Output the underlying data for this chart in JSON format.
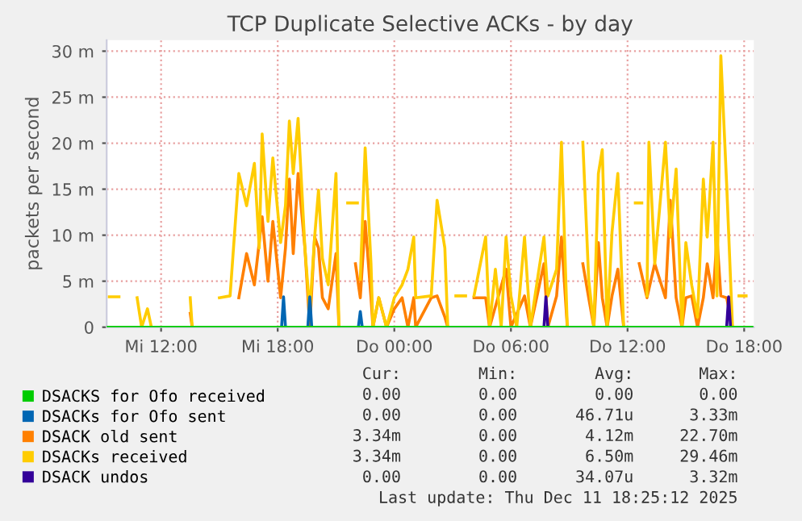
{
  "chart_data": {
    "type": "line",
    "title": "TCP Duplicate Selective ACKs - by day",
    "ylabel": "packets per second",
    "xlim": [
      "2025-12-10T09:12",
      "2025-12-11T18:30"
    ],
    "xticks": [
      {
        "value": "2025-12-10T12:00",
        "label": "Mi 12:00"
      },
      {
        "value": "2025-12-10T18:00",
        "label": "Mi 18:00"
      },
      {
        "value": "2025-12-11T00:00",
        "label": "Do 00:00"
      },
      {
        "value": "2025-12-11T06:00",
        "label": "Do 06:00"
      },
      {
        "value": "2025-12-11T12:00",
        "label": "Do 12:00"
      },
      {
        "value": "2025-12-11T18:00",
        "label": "Do 18:00"
      }
    ],
    "ylim": [
      0,
      31.2
    ],
    "yticks": [
      0,
      {
        "value": 5,
        "label": "5 m"
      },
      {
        "value": 10,
        "label": "10 m"
      },
      {
        "value": 15,
        "label": "15 m"
      },
      {
        "value": 20,
        "label": "20 m"
      },
      {
        "value": 25,
        "label": "25 m"
      },
      {
        "value": 30,
        "label": "30 m"
      }
    ],
    "grid": true,
    "legend": "bottom",
    "marker": "none",
    "line_style": "solid",
    "series": [
      {
        "name": "DSACKS for Ofo received",
        "color": "#00cc00",
        "x": [
          "2025-12-10T09:12",
          "2025-12-11T18:24"
        ],
        "values": [
          0,
          0
        ]
      },
      {
        "name": "DSACKs for Ofo sent",
        "color": "#0066b3",
        "x": [
          "2025-12-10T18:12",
          "2025-12-10T18:18",
          "2025-12-10T18:24",
          "2025-12-10T19:00",
          "2025-12-10T19:33",
          "2025-12-10T19:39",
          "2025-12-10T19:45",
          "2025-12-10T21:00",
          "2025-12-10T22:09",
          "2025-12-10T22:15",
          "2025-12-10T22:21"
        ],
        "values": [
          0,
          3.3,
          0,
          null,
          0,
          3.3,
          0,
          null,
          0,
          1.7,
          0
        ]
      },
      {
        "name": "DSACK old sent",
        "color": "#ff8000",
        "x": [
          "2025-12-10T13:30",
          "2025-12-10T13:36",
          "2025-12-10T13:42",
          "2025-12-10T16:00",
          "2025-12-10T16:24",
          "2025-12-10T16:48",
          "2025-12-10T17:12",
          "2025-12-10T17:30",
          "2025-12-10T17:45",
          "2025-12-10T18:09",
          "2025-12-10T18:24",
          "2025-12-10T18:36",
          "2025-12-10T18:48",
          "2025-12-10T19:03",
          "2025-12-10T19:24",
          "2025-12-10T19:39",
          "2025-12-10T19:54",
          "2025-12-10T20:06",
          "2025-12-10T20:18",
          "2025-12-10T20:36",
          "2025-12-10T21:00",
          "2025-12-10T21:09",
          "2025-12-10T21:30",
          "2025-12-10T22:00",
          "2025-12-10T22:15",
          "2025-12-10T22:30",
          "2025-12-10T22:48",
          "2025-12-10T22:54",
          "2025-12-10T23:12",
          "2025-12-10T23:36",
          "2025-12-11T00:00",
          "2025-12-11T00:24",
          "2025-12-11T00:42",
          "2025-12-11T01:00",
          "2025-12-11T01:06",
          "2025-12-11T01:54",
          "2025-12-11T02:12",
          "2025-12-11T02:36",
          "2025-12-11T02:45",
          "2025-12-11T03:30",
          "2025-12-11T04:06",
          "2025-12-11T04:42",
          "2025-12-11T04:54",
          "2025-12-11T05:45",
          "2025-12-11T06:00",
          "2025-12-11T06:42",
          "2025-12-11T07:00",
          "2025-12-11T07:42",
          "2025-12-11T07:54",
          "2025-12-11T08:21",
          "2025-12-11T08:36",
          "2025-12-11T08:54",
          "2025-12-11T09:18",
          "2025-12-11T09:42",
          "2025-12-11T10:00",
          "2025-12-11T10:16",
          "2025-12-11T10:30",
          "2025-12-11T10:42",
          "2025-12-11T10:57",
          "2025-12-11T11:12",
          "2025-12-11T11:30",
          "2025-12-11T11:48",
          "2025-12-11T12:12",
          "2025-12-11T12:36",
          "2025-12-11T13:00",
          "2025-12-11T13:24",
          "2025-12-11T13:57",
          "2025-12-11T14:12",
          "2025-12-11T14:30",
          "2025-12-11T14:48",
          "2025-12-11T15:00",
          "2025-12-11T15:18",
          "2025-12-11T15:36",
          "2025-12-11T15:54",
          "2025-12-11T16:06",
          "2025-12-11T16:24",
          "2025-12-11T16:36",
          "2025-12-11T16:48",
          "2025-12-11T17:06",
          "2025-12-11T17:24"
        ],
        "values": [
          1.5,
          0,
          null,
          3.2,
          8.0,
          4.6,
          12.0,
          5.0,
          11.5,
          3.2,
          8.6,
          16.1,
          8.0,
          16.7,
          8.6,
          0,
          9.8,
          8.6,
          3.2,
          2.0,
          8.0,
          0,
          null,
          6.9,
          3.2,
          11.5,
          3.2,
          0,
          3.2,
          0,
          2.0,
          3.2,
          0,
          3.2,
          0,
          3.2,
          3.4,
          1.1,
          0,
          null,
          3.2,
          3.2,
          0,
          6.3,
          0,
          3.4,
          0,
          6.9,
          0,
          3.4,
          9.8,
          0,
          null,
          6.9,
          3.2,
          0,
          9.2,
          3.2,
          0,
          3.4,
          6.3,
          0,
          null,
          6.9,
          3.2,
          6.9,
          3.2,
          13.8,
          3.2,
          0,
          3.2,
          3.4,
          0,
          3.2,
          6.9,
          3.2,
          9.8,
          3.4,
          3.2,
          0
        ]
      },
      {
        "name": "DSACKs received",
        "color": "#ffcc00",
        "x": [
          "2025-12-10T09:20",
          "2025-12-10T09:50",
          "2025-12-10T09:54",
          "2025-12-10T10:46",
          "2025-12-10T11:00",
          "2025-12-10T11:18",
          "2025-12-10T11:30",
          "2025-12-10T11:36",
          "2025-12-10T13:30",
          "2025-12-10T13:36",
          "2025-12-10T13:42",
          "2025-12-10T15:00",
          "2025-12-10T15:33",
          "2025-12-10T16:00",
          "2025-12-10T16:24",
          "2025-12-10T16:48",
          "2025-12-10T17:03",
          "2025-12-10T17:12",
          "2025-12-10T17:30",
          "2025-12-10T17:45",
          "2025-12-10T18:09",
          "2025-12-10T18:24",
          "2025-12-10T18:36",
          "2025-12-10T18:48",
          "2025-12-10T19:03",
          "2025-12-10T19:24",
          "2025-12-10T19:39",
          "2025-12-10T19:54",
          "2025-12-10T20:06",
          "2025-12-10T20:18",
          "2025-12-10T20:36",
          "2025-12-10T21:00",
          "2025-12-10T21:09",
          "2025-12-10T21:30",
          "2025-12-10T21:36",
          "2025-12-10T22:06",
          "2025-12-10T22:08",
          "2025-12-10T22:15",
          "2025-12-10T22:30",
          "2025-12-10T22:48",
          "2025-12-10T22:54",
          "2025-12-10T23:12",
          "2025-12-10T23:36",
          "2025-12-11T00:00",
          "2025-12-11T00:24",
          "2025-12-11T00:42",
          "2025-12-11T01:00",
          "2025-12-11T01:06",
          "2025-12-11T01:54",
          "2025-12-11T02:12",
          "2025-12-11T02:36",
          "2025-12-11T02:45",
          "2025-12-11T02:50",
          "2025-12-11T03:10",
          "2025-12-11T03:40",
          "2025-12-11T03:42",
          "2025-12-11T04:06",
          "2025-12-11T04:42",
          "2025-12-11T04:54",
          "2025-12-11T05:12",
          "2025-12-11T05:30",
          "2025-12-11T05:45",
          "2025-12-11T06:00",
          "2025-12-11T06:18",
          "2025-12-11T06:42",
          "2025-12-11T07:00",
          "2025-12-11T07:24",
          "2025-12-11T07:42",
          "2025-12-11T07:54",
          "2025-12-11T08:21",
          "2025-12-11T08:36",
          "2025-12-11T08:54",
          "2025-12-11T09:18",
          "2025-12-11T09:42",
          "2025-12-11T10:00",
          "2025-12-11T10:16",
          "2025-12-11T10:30",
          "2025-12-11T10:42",
          "2025-12-11T10:57",
          "2025-12-11T11:12",
          "2025-12-11T11:30",
          "2025-12-11T11:48",
          "2025-12-11T12:12",
          "2025-12-11T12:24",
          "2025-12-11T12:44",
          "2025-12-11T12:48",
          "2025-12-11T13:00",
          "2025-12-11T13:06",
          "2025-12-11T13:24",
          "2025-12-11T13:57",
          "2025-12-11T14:12",
          "2025-12-11T14:30",
          "2025-12-11T14:48",
          "2025-12-11T15:00",
          "2025-12-11T15:18",
          "2025-12-11T15:36",
          "2025-12-11T15:54",
          "2025-12-11T16:06",
          "2025-12-11T16:24",
          "2025-12-11T16:36",
          "2025-12-11T16:48",
          "2025-12-11T17:06",
          "2025-12-11T17:24",
          "2025-12-11T17:40",
          "2025-12-11T17:44",
          "2025-12-11T18:06"
        ],
        "values": [
          3.3,
          3.3,
          null,
          3.2,
          0,
          2.0,
          0,
          null,
          3.2,
          0,
          null,
          3.2,
          3.4,
          16.7,
          13.2,
          17.8,
          8.6,
          21.0,
          11.5,
          18.4,
          9.2,
          13.2,
          22.4,
          16.7,
          22.7,
          8.6,
          1.7,
          9.8,
          14.9,
          7.5,
          4.6,
          16.7,
          0,
          null,
          13.5,
          13.5,
          null,
          5.2,
          19.5,
          6.9,
          0,
          3.2,
          0,
          3.2,
          4.6,
          6.3,
          9.8,
          3.2,
          3.4,
          13.8,
          8.6,
          0,
          null,
          3.4,
          3.4,
          null,
          3.4,
          9.8,
          0,
          6.3,
          0,
          9.8,
          3.4,
          0,
          9.8,
          0,
          5.7,
          9.8,
          3.4,
          6.3,
          20.1,
          0,
          null,
          20.1,
          5.2,
          0,
          16.7,
          19.3,
          0,
          10.3,
          16.7,
          0,
          null,
          13.5,
          13.5,
          null,
          3.4,
          20.1,
          6.9,
          20.1,
          9.8,
          17.2,
          0,
          9.2,
          4.6,
          1.1,
          16.1,
          9.8,
          20.1,
          3.4,
          29.5,
          15.5,
          0,
          null,
          3.4,
          3.4
        ]
      },
      {
        "name": "DSACK undos",
        "color": "#330099",
        "x": [
          "2025-12-11T07:42",
          "2025-12-11T07:48",
          "2025-12-11T07:54",
          "2025-12-11T12:00",
          "2025-12-11T17:06",
          "2025-12-11T17:12",
          "2025-12-11T17:18"
        ],
        "values": [
          0,
          3.3,
          0,
          null,
          0,
          3.3,
          0
        ]
      }
    ],
    "annotations": [
      "Cur:",
      "Min:",
      "Avg:",
      "Max:",
      "0.00",
      "0.00",
      "0.00",
      "0.00",
      "0.00",
      "0.00",
      "46.71u",
      "3.33m",
      "3.34m",
      "0.00",
      "4.12m",
      "22.70m",
      "3.34m",
      "0.00",
      "6.50m",
      "29.46m",
      "0.00",
      "0.00",
      "34.07u",
      "3.32m",
      "Last update: Thu Dec 11 18:25:12 2025"
    ]
  }
}
